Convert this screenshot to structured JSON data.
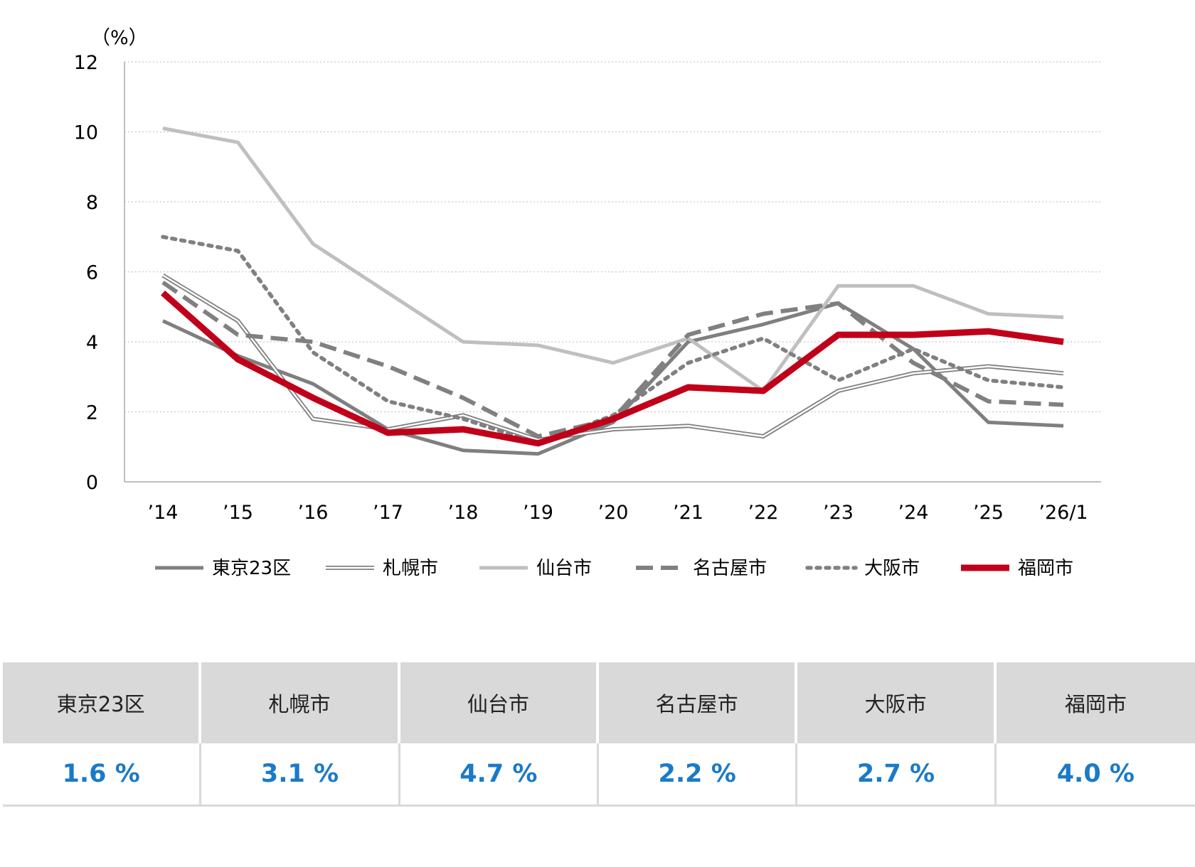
{
  "chart_data": {
    "type": "line",
    "unit_label": "（%）",
    "categories": [
      "’14",
      "’15",
      "’16",
      "’17",
      "’18",
      "’19",
      "’20",
      "’21",
      "’22",
      "’23",
      "’24",
      "’25",
      "’26/1"
    ],
    "ylim": [
      0,
      12
    ],
    "yticks": [
      "0",
      "2",
      "4",
      "6",
      "8",
      "10",
      "12"
    ],
    "grid": true,
    "legend_position": "bottom",
    "series": [
      {
        "name": "東京23区",
        "color": "#7f7f7f",
        "style": "solid-thick",
        "values": [
          4.6,
          3.6,
          2.8,
          1.5,
          0.9,
          0.8,
          1.7,
          4.0,
          4.5,
          5.1,
          3.8,
          1.7,
          1.6
        ]
      },
      {
        "name": "札幌市",
        "color": "#808080",
        "style": "double",
        "values": [
          5.9,
          4.6,
          1.8,
          1.5,
          1.9,
          1.2,
          1.5,
          1.6,
          1.3,
          2.6,
          3.1,
          3.3,
          3.1
        ]
      },
      {
        "name": "仙台市",
        "color": "#bfbfbf",
        "style": "solid-thick",
        "values": [
          10.1,
          9.7,
          6.8,
          5.4,
          4.0,
          3.9,
          3.4,
          4.1,
          2.6,
          5.6,
          5.6,
          4.8,
          4.7
        ]
      },
      {
        "name": "名古屋市",
        "color": "#808080",
        "style": "dashed",
        "values": [
          5.7,
          4.2,
          4.0,
          3.3,
          2.4,
          1.3,
          1.8,
          4.2,
          4.8,
          5.1,
          3.4,
          2.3,
          2.2
        ]
      },
      {
        "name": "大阪市",
        "color": "#808080",
        "style": "dotted",
        "values": [
          7.0,
          6.6,
          3.7,
          2.3,
          1.8,
          1.1,
          1.9,
          3.4,
          4.1,
          2.9,
          3.8,
          2.9,
          2.7
        ]
      },
      {
        "name": "福岡市",
        "color": "#c0001a",
        "style": "solid-heavy",
        "values": [
          5.4,
          3.5,
          2.4,
          1.4,
          1.5,
          1.1,
          1.8,
          2.7,
          2.6,
          4.2,
          4.2,
          4.3,
          4.0
        ]
      }
    ]
  },
  "summary_table": {
    "headers": [
      "東京23区",
      "札幌市",
      "仙台市",
      "名古屋市",
      "大阪市",
      "福岡市"
    ],
    "values": [
      "1.6 %",
      "3.1 %",
      "4.7 %",
      "2.2 %",
      "2.7 %",
      "4.0 %"
    ]
  }
}
